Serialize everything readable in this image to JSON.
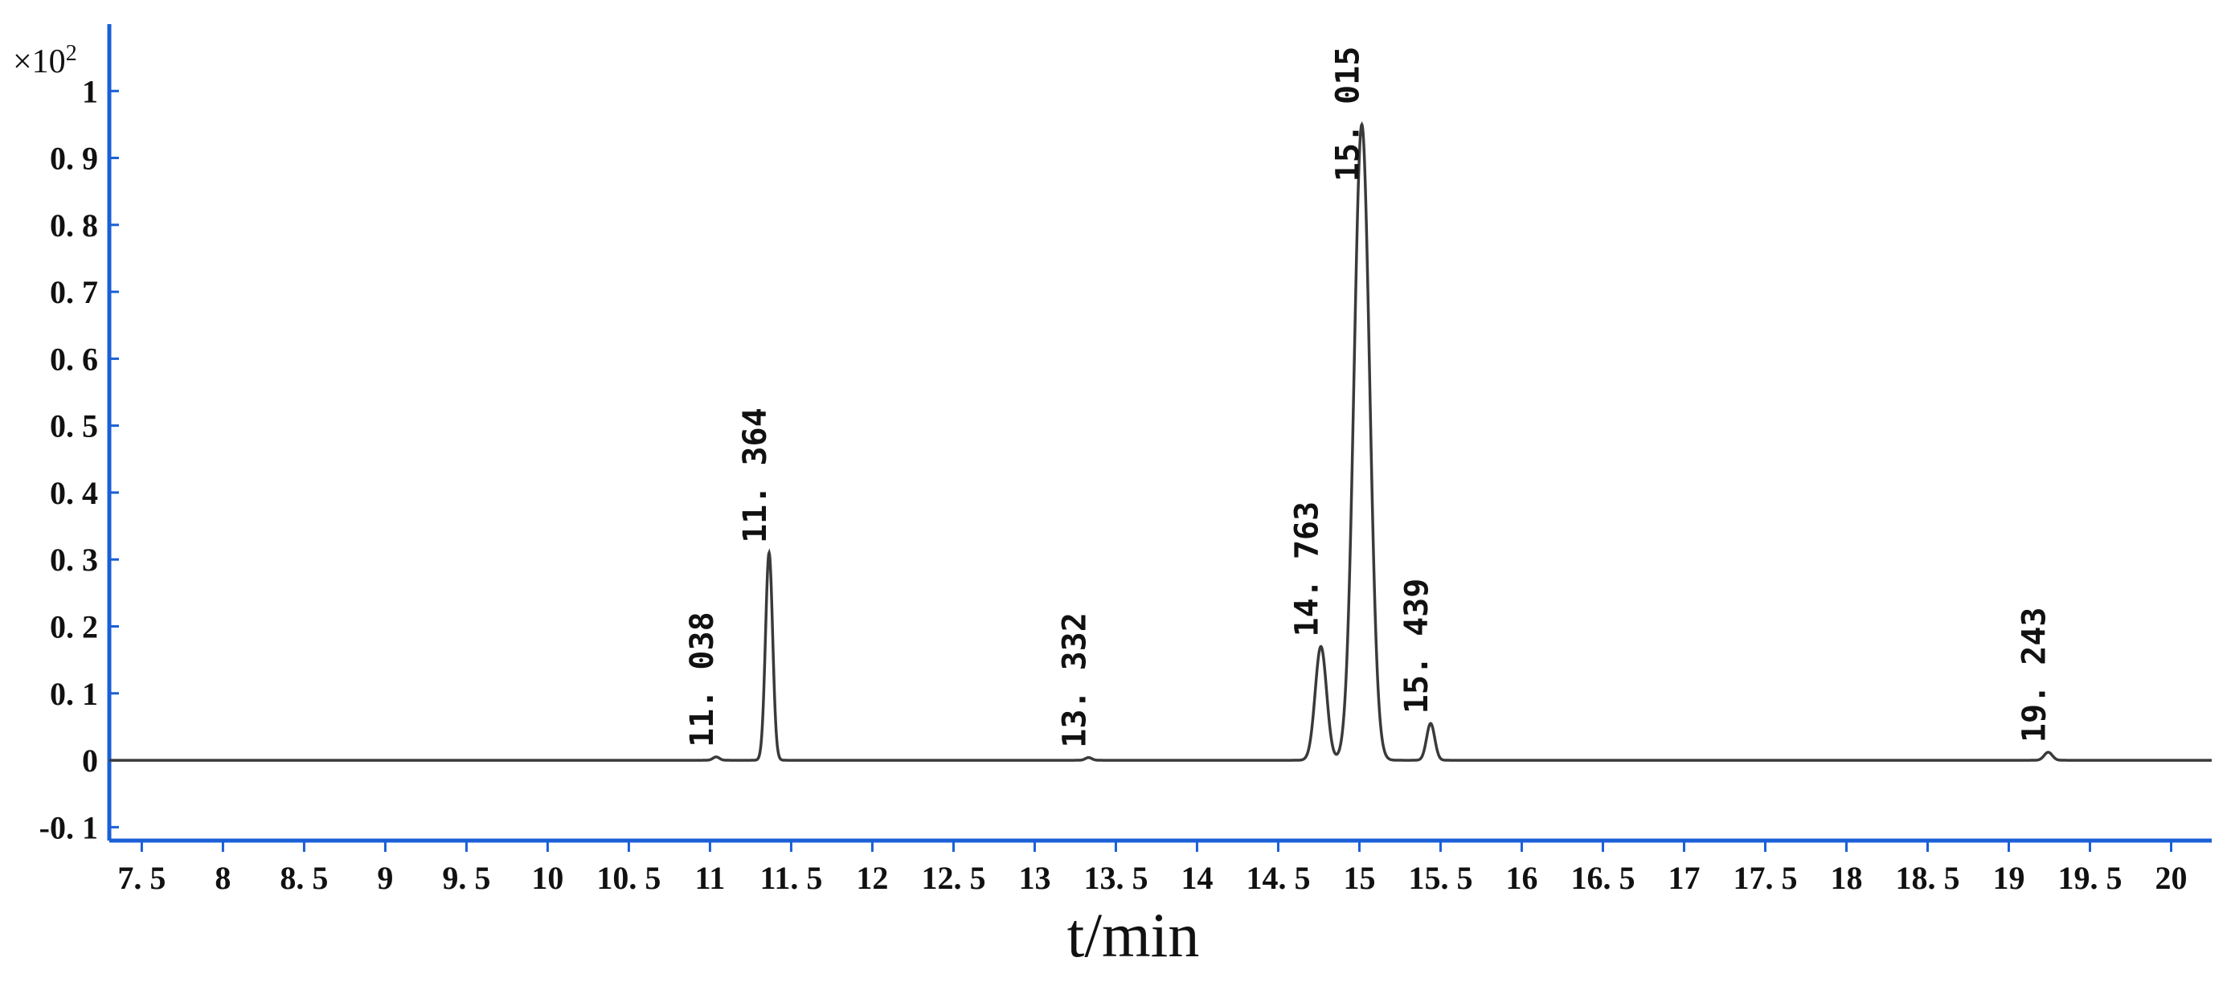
{
  "chart_data": {
    "type": "line",
    "xlabel": "t/min",
    "ylabel": "",
    "y_scale_note": {
      "prefix": "×10",
      "exponent": "2"
    },
    "xlim": [
      7.3,
      20.25
    ],
    "ylim": [
      -0.12,
      1.1
    ],
    "x_ticks": [
      7.5,
      8,
      8.5,
      9,
      9.5,
      10,
      10.5,
      11,
      11.5,
      12,
      12.5,
      13,
      13.5,
      14,
      14.5,
      15,
      15.5,
      16,
      16.5,
      17,
      17.5,
      18,
      18.5,
      19,
      19.5,
      20
    ],
    "x_tick_labels": [
      "7. 5",
      "8",
      "8. 5",
      "9",
      "9. 5",
      "10",
      "10. 5",
      "11",
      "11. 5",
      "12",
      "12. 5",
      "13",
      "13. 5",
      "14",
      "14. 5",
      "15",
      "15. 5",
      "16",
      "16. 5",
      "17",
      "17. 5",
      "18",
      "18. 5",
      "19",
      "19. 5",
      "20"
    ],
    "y_ticks": [
      -0.1,
      0,
      0.1,
      0.2,
      0.3,
      0.4,
      0.5,
      0.6,
      0.7,
      0.8,
      0.9,
      1
    ],
    "y_tick_labels": [
      "-0. 1",
      "0",
      "0. 1",
      "0. 2",
      "0. 3",
      "0. 4",
      "0. 5",
      "0. 6",
      "0. 7",
      "0. 8",
      "0. 9",
      "1"
    ],
    "grid": false,
    "series": [
      {
        "color": "#3a3a3a",
        "baseline": 0,
        "peaks": [
          {
            "rt": 11.038,
            "height": 0.005,
            "width": 0.02
          },
          {
            "rt": 11.364,
            "height": 0.31,
            "width": 0.022
          },
          {
            "rt": 13.332,
            "height": 0.004,
            "width": 0.02
          },
          {
            "rt": 14.763,
            "height": 0.17,
            "width": 0.035
          },
          {
            "rt": 15.015,
            "height": 0.95,
            "width": 0.048
          },
          {
            "rt": 15.439,
            "height": 0.055,
            "width": 0.025
          },
          {
            "rt": 19.243,
            "height": 0.012,
            "width": 0.025
          }
        ]
      }
    ],
    "annotations": [
      {
        "text": "11. 038",
        "x": 11.038,
        "y": 0.005
      },
      {
        "text": "11. 364",
        "x": 11.364,
        "y": 0.31
      },
      {
        "text": "13. 332",
        "x": 13.332,
        "y": 0.004
      },
      {
        "text": "14. 763",
        "x": 14.763,
        "y": 0.17
      },
      {
        "text": "15. 015",
        "x": 15.015,
        "y": 0.85
      },
      {
        "text": "15. 439",
        "x": 15.439,
        "y": 0.055
      },
      {
        "text": "19. 243",
        "x": 19.243,
        "y": 0.012
      }
    ],
    "colors": {
      "axis": "#1a5fd6",
      "trace": "#3a3a3a"
    }
  }
}
